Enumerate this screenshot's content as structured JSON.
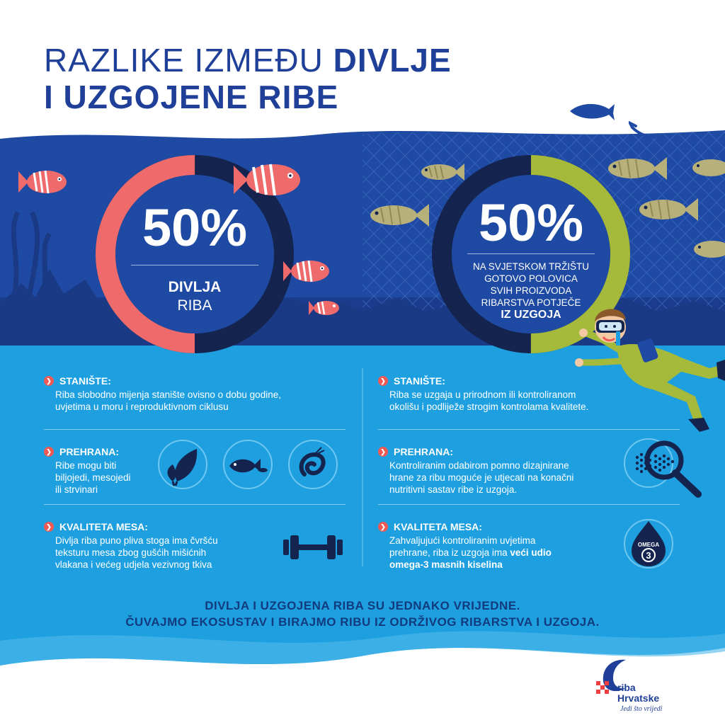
{
  "title": {
    "line1_thin": "RAZLIKE IZMEĐU ",
    "line1_bold": "DIVLJE",
    "line2_bold": "I UZGOJENE RIBE"
  },
  "wild": {
    "percent": "50%",
    "share": 0.5,
    "label_bold": "DIVLJA",
    "label_thin": "RIBA",
    "ring_color": "#ef6b6b",
    "sections": [
      {
        "head": "STANIŠTE:",
        "lines": [
          "Riba slobodno mijenja stanište ovisno o dobu godine,",
          "uvjetima u moru i reproduktivnom ciklusu"
        ]
      },
      {
        "head": "PREHRANA:",
        "lines": [
          "Ribe mogu biti",
          "biljojedi, mesojedi",
          "ili strvinari"
        ]
      },
      {
        "head": "KVALITETA MESA:",
        "lines": [
          "Divlja riba puno pliva stoga ima čvršću",
          "teksturu mesa zbog gušćih mišićnih",
          "vlakana i većeg udjela vezivnog tkiva"
        ]
      }
    ]
  },
  "farmed": {
    "percent": "50%",
    "share": 0.5,
    "lines": [
      "NA SVJETSKOM TRŽIŠTU",
      "GOTOVO POLOVICA",
      "SVIH PROIZVODA",
      "RIBARSTVA POTJEČE"
    ],
    "label_bold": "IZ UZGOJA",
    "ring_color": "#a5b93a",
    "sections": [
      {
        "head": "STANIŠTE:",
        "lines": [
          "Riba se uzgaja u prirodnom ili kontroliranom",
          "okolišu i podliježe strogim kontrolama kvalitete."
        ]
      },
      {
        "head": "PREHRANA:",
        "lines": [
          "Kontroliranim odabirom pomno dizajnirane",
          "hrane za ribu moguće je utjecati na konačni",
          "nutritivni sastav ribe iz uzgoja."
        ]
      },
      {
        "head": "KVALITETA MESA:",
        "lines": [
          "Zahvaljujući kontroliranim uvjetima",
          "prehrane, riba iz uzgoja ima "
        ],
        "bold_a": "veći udio",
        "bold_b": "omega-3 masnih kiselina"
      }
    ]
  },
  "icons": {
    "leaf": "leaf-icon",
    "fish": "fish-icon",
    "shrimp": "shrimp-icon",
    "magnifier": "magnifier-icon",
    "dumbbell": "dumbbell-icon",
    "omega": "omega-drop-icon"
  },
  "omega_label": "OMEGA",
  "omega_number": "3",
  "bottom": {
    "line1": "DIVLJA I UZGOJENA RIBA SU JEDNAKO VRIJEDNE.",
    "line2": "ČUVAJMO EKOSUSTAV I BIRAJMO RIBU IZ ODRŽIVOG RIBARSTVA I UZGOJA."
  },
  "logo": {
    "line1": "riba",
    "line2": "Hrvatske",
    "tagline": "Jedi što vrijedi"
  },
  "colors": {
    "deep_blue": "#1f4aa3",
    "dark_navy": "#14244f",
    "light_blue": "#1ea0e0",
    "title_blue": "#1f3f98",
    "coral": "#ef6b6b",
    "olive": "#a5b93a",
    "accent_red": "#ef5a55"
  }
}
